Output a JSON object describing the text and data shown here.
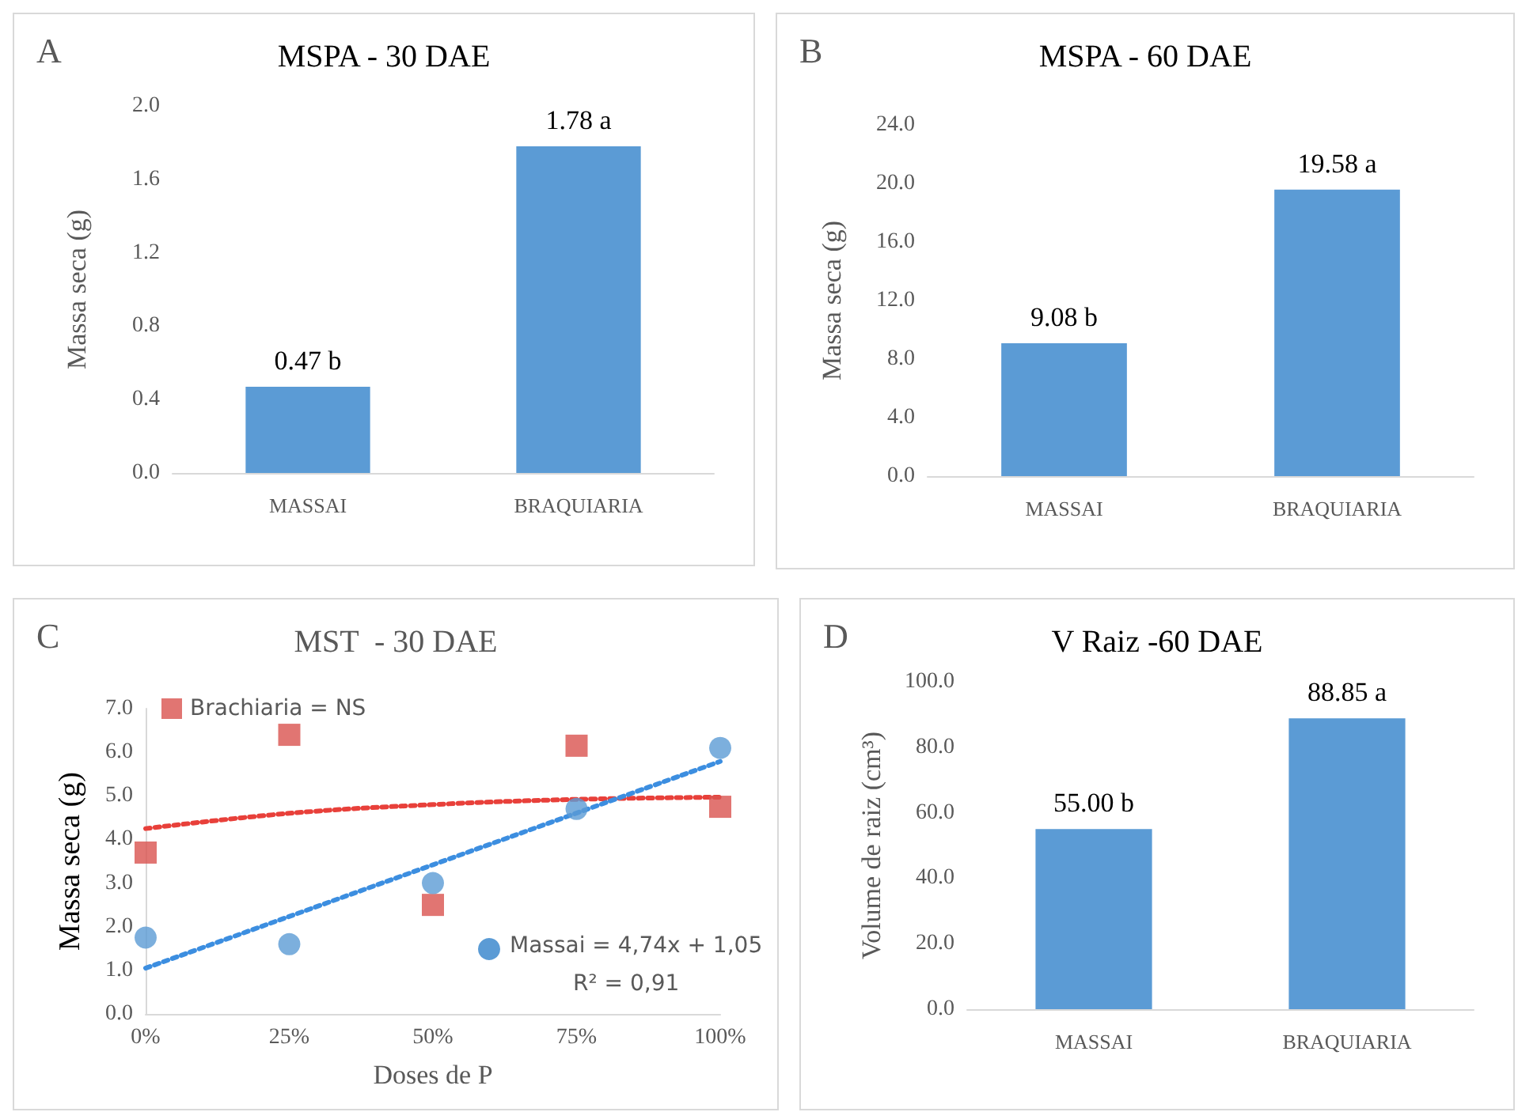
{
  "chart_data": [
    {
      "type": "bar",
      "title": "MSPA - 30 DAE",
      "ylabel": "Massa seca (g)",
      "annotations": [
        "A"
      ],
      "categories": [
        "MASSAI",
        "BRAQUIARIA"
      ],
      "values": [
        0.47,
        1.78
      ],
      "value_labels": [
        "0.47 b",
        "1.78 a"
      ],
      "color": "#5b9bd5",
      "ylim": [
        0,
        2
      ],
      "yticks": [
        {
          "value": 0,
          "label": "0.0"
        },
        {
          "value": 0.4,
          "label": "0.4"
        },
        {
          "value": 0.8,
          "label": "0.8"
        },
        {
          "value": 1.2,
          "label": "1.2"
        },
        {
          "value": 1.6,
          "label": "1.6"
        },
        {
          "value": 2,
          "label": "2.0"
        }
      ]
    },
    {
      "type": "bar",
      "title": "MSPA - 60 DAE",
      "ylabel": "Massa seca (g)",
      "annotations": [
        "B"
      ],
      "categories": [
        "MASSAI",
        "BRAQUIARIA"
      ],
      "values": [
        9.08,
        19.58
      ],
      "value_labels": [
        "9.08 b",
        "19.58 a"
      ],
      "color": "#5b9bd5",
      "ylim": [
        0,
        24
      ],
      "yticks": [
        {
          "value": 0,
          "label": "0.0"
        },
        {
          "value": 4,
          "label": "4.0"
        },
        {
          "value": 8,
          "label": "8.0"
        },
        {
          "value": 12,
          "label": "12.0"
        },
        {
          "value": 16,
          "label": "16.0"
        },
        {
          "value": 20,
          "label": "20.0"
        },
        {
          "value": 24,
          "label": "24.0"
        }
      ]
    },
    {
      "type": "scatter",
      "title": "MST  - 30 DAE",
      "xlabel": "Doses de P",
      "ylabel": "Massa seca (g)",
      "annotations": [
        "C",
        "R² = 0,91"
      ],
      "legend": "top left",
      "xlim": [
        0,
        100
      ],
      "xticks": [
        {
          "value": 0,
          "label": "0%"
        },
        {
          "value": 25,
          "label": "25%"
        },
        {
          "value": 50,
          "label": "50%"
        },
        {
          "value": 75,
          "label": "75%"
        },
        {
          "value": 100,
          "label": "100%"
        }
      ],
      "ylim": [
        0,
        7
      ],
      "yticks": [
        {
          "value": 0,
          "label": "0.0"
        },
        {
          "value": 1,
          "label": "1.0"
        },
        {
          "value": 2,
          "label": "2.0"
        },
        {
          "value": 3,
          "label": "3.0"
        },
        {
          "value": 4,
          "label": "4.0"
        },
        {
          "value": 5,
          "label": "5.0"
        },
        {
          "value": 6,
          "label": "6.0"
        },
        {
          "value": 7,
          "label": "7.0"
        }
      ],
      "series": [
        {
          "name": "Brachiaria = NS",
          "color": "#d9534f",
          "marker": "square",
          "x": [
            0,
            25,
            50,
            75,
            100
          ],
          "values": [
            3.7,
            6.4,
            2.5,
            6.15,
            4.75
          ]
        },
        {
          "name": "Massai = 4,74x + 1,05",
          "color": "#5b9bd5",
          "marker": "circle",
          "x": [
            0,
            25,
            50,
            75,
            100
          ],
          "values": [
            1.75,
            1.6,
            3.0,
            4.7,
            6.1
          ]
        },
        {
          "type": "line",
          "color": "#e8403a",
          "line_style": "dotted",
          "marker": "none",
          "x": [
            0,
            25,
            50,
            75,
            100
          ],
          "values": [
            4.25,
            4.6,
            4.8,
            4.92,
            4.97
          ]
        },
        {
          "type": "line",
          "color": "#3c8ee0",
          "line_style": "dotted",
          "marker": "none",
          "x": [
            0,
            100
          ],
          "values": [
            1.05,
            5.79
          ]
        }
      ]
    },
    {
      "type": "bar",
      "title": "V Raiz -60 DAE",
      "ylabel": "Volume de raiz (cm³)",
      "annotations": [
        "D"
      ],
      "categories": [
        "MASSAI",
        "BRAQUIARIA"
      ],
      "values": [
        55.0,
        88.85
      ],
      "value_labels": [
        "55.00 b",
        "88.85 a"
      ],
      "color": "#5b9bd5",
      "ylim": [
        0,
        100
      ],
      "yticks": [
        {
          "value": 0,
          "label": "0.0"
        },
        {
          "value": 20,
          "label": "20.0"
        },
        {
          "value": 40,
          "label": "40.0"
        },
        {
          "value": 60,
          "label": "60.0"
        },
        {
          "value": 80,
          "label": "80.0"
        },
        {
          "value": 100,
          "label": "100.0"
        }
      ]
    }
  ]
}
